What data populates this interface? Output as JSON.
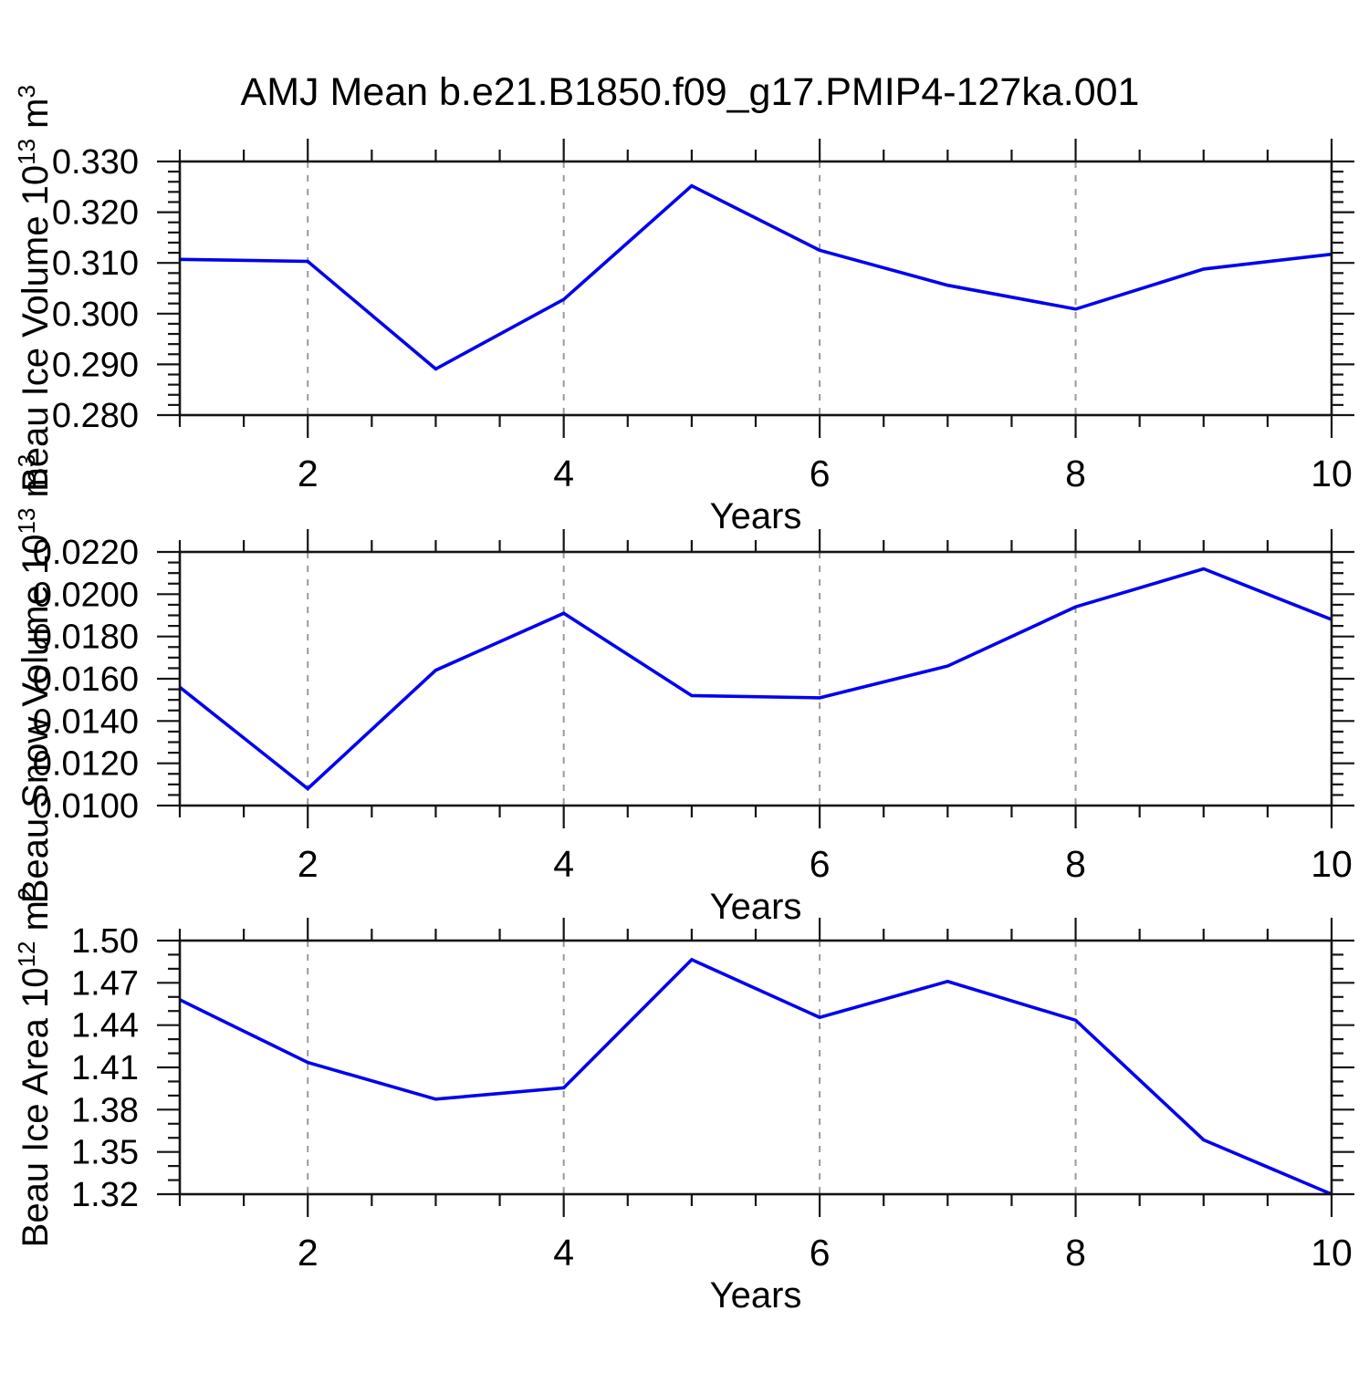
{
  "title": "AMJ Mean b.e21.B1850.f09_g17.PMIP4-127ka.001",
  "colors": {
    "line": "#0000ee",
    "frame": "#141414",
    "grid": "#9a9a9a",
    "text": "#000000"
  },
  "chart_data": [
    {
      "type": "line",
      "name": "beau-ice-volume",
      "ylabel": "Beau Ice Volume 10^13 m^3",
      "ylabel_parts": [
        {
          "text": "Beau Ice Volume 10",
          "sup": false
        },
        {
          "text": "13",
          "sup": true
        },
        {
          "text": " m",
          "sup": false
        },
        {
          "text": "3",
          "sup": true
        }
      ],
      "xlabel": "Years",
      "x": [
        1,
        2,
        3,
        4,
        5,
        6,
        7,
        8,
        9,
        10
      ],
      "values": [
        0.3107,
        0.3103,
        0.2891,
        0.3028,
        0.3252,
        0.3125,
        0.3056,
        0.3009,
        0.3088,
        0.3117
      ],
      "xlim": [
        1,
        10
      ],
      "ylim": [
        0.28,
        0.33
      ],
      "ytick_step": 0.01,
      "yminor_step": 0.002,
      "ytick_decimals": 3,
      "xticks": [
        2,
        4,
        6,
        8,
        10
      ],
      "xminor_step": 0.5,
      "grid_x": [
        2,
        4,
        6,
        8
      ],
      "grid_style": "dashed",
      "legend": "none"
    },
    {
      "type": "line",
      "name": "beau-snow-volume",
      "ylabel": "Beau Snow Volume 10^13 m^3",
      "ylabel_parts": [
        {
          "text": "Beau Snow Volume 10",
          "sup": false
        },
        {
          "text": "13",
          "sup": true
        },
        {
          "text": " m",
          "sup": false
        },
        {
          "text": "3",
          "sup": true
        }
      ],
      "xlabel": "Years",
      "x": [
        1,
        2,
        3,
        4,
        5,
        6,
        7,
        8,
        9,
        10
      ],
      "values": [
        0.0156,
        0.0108,
        0.0164,
        0.0191,
        0.0152,
        0.0151,
        0.0166,
        0.0194,
        0.0212,
        0.0188
      ],
      "xlim": [
        1,
        10
      ],
      "ylim": [
        0.01,
        0.022
      ],
      "ytick_step": 0.002,
      "yminor_step": 0.0005,
      "ytick_decimals": 4,
      "xticks": [
        2,
        4,
        6,
        8,
        10
      ],
      "xminor_step": 0.5,
      "grid_x": [
        2,
        4,
        6,
        8
      ],
      "grid_style": "dashed",
      "legend": "none"
    },
    {
      "type": "line",
      "name": "beau-ice-area",
      "ylabel": "Beau Ice Area 10^12 m^2",
      "ylabel_parts": [
        {
          "text": "Beau Ice Area 10",
          "sup": false
        },
        {
          "text": "12",
          "sup": true
        },
        {
          "text": " m",
          "sup": false
        },
        {
          "text": "2",
          "sup": true
        }
      ],
      "xlabel": "Years",
      "x": [
        1,
        2,
        3,
        4,
        5,
        6,
        7,
        8,
        9,
        10
      ],
      "values": [
        1.458,
        1.4135,
        1.3875,
        1.3955,
        1.4865,
        1.4455,
        1.471,
        1.4435,
        1.3585,
        1.32
      ],
      "xlim": [
        1,
        10
      ],
      "ylim": [
        1.32,
        1.5
      ],
      "ytick_step": 0.03,
      "yminor_step": 0.01,
      "ytick_decimals": 2,
      "xticks": [
        2,
        4,
        6,
        8,
        10
      ],
      "xminor_step": 0.5,
      "grid_x": [
        2,
        4,
        6,
        8
      ],
      "grid_style": "dashed",
      "legend": "none"
    }
  ]
}
